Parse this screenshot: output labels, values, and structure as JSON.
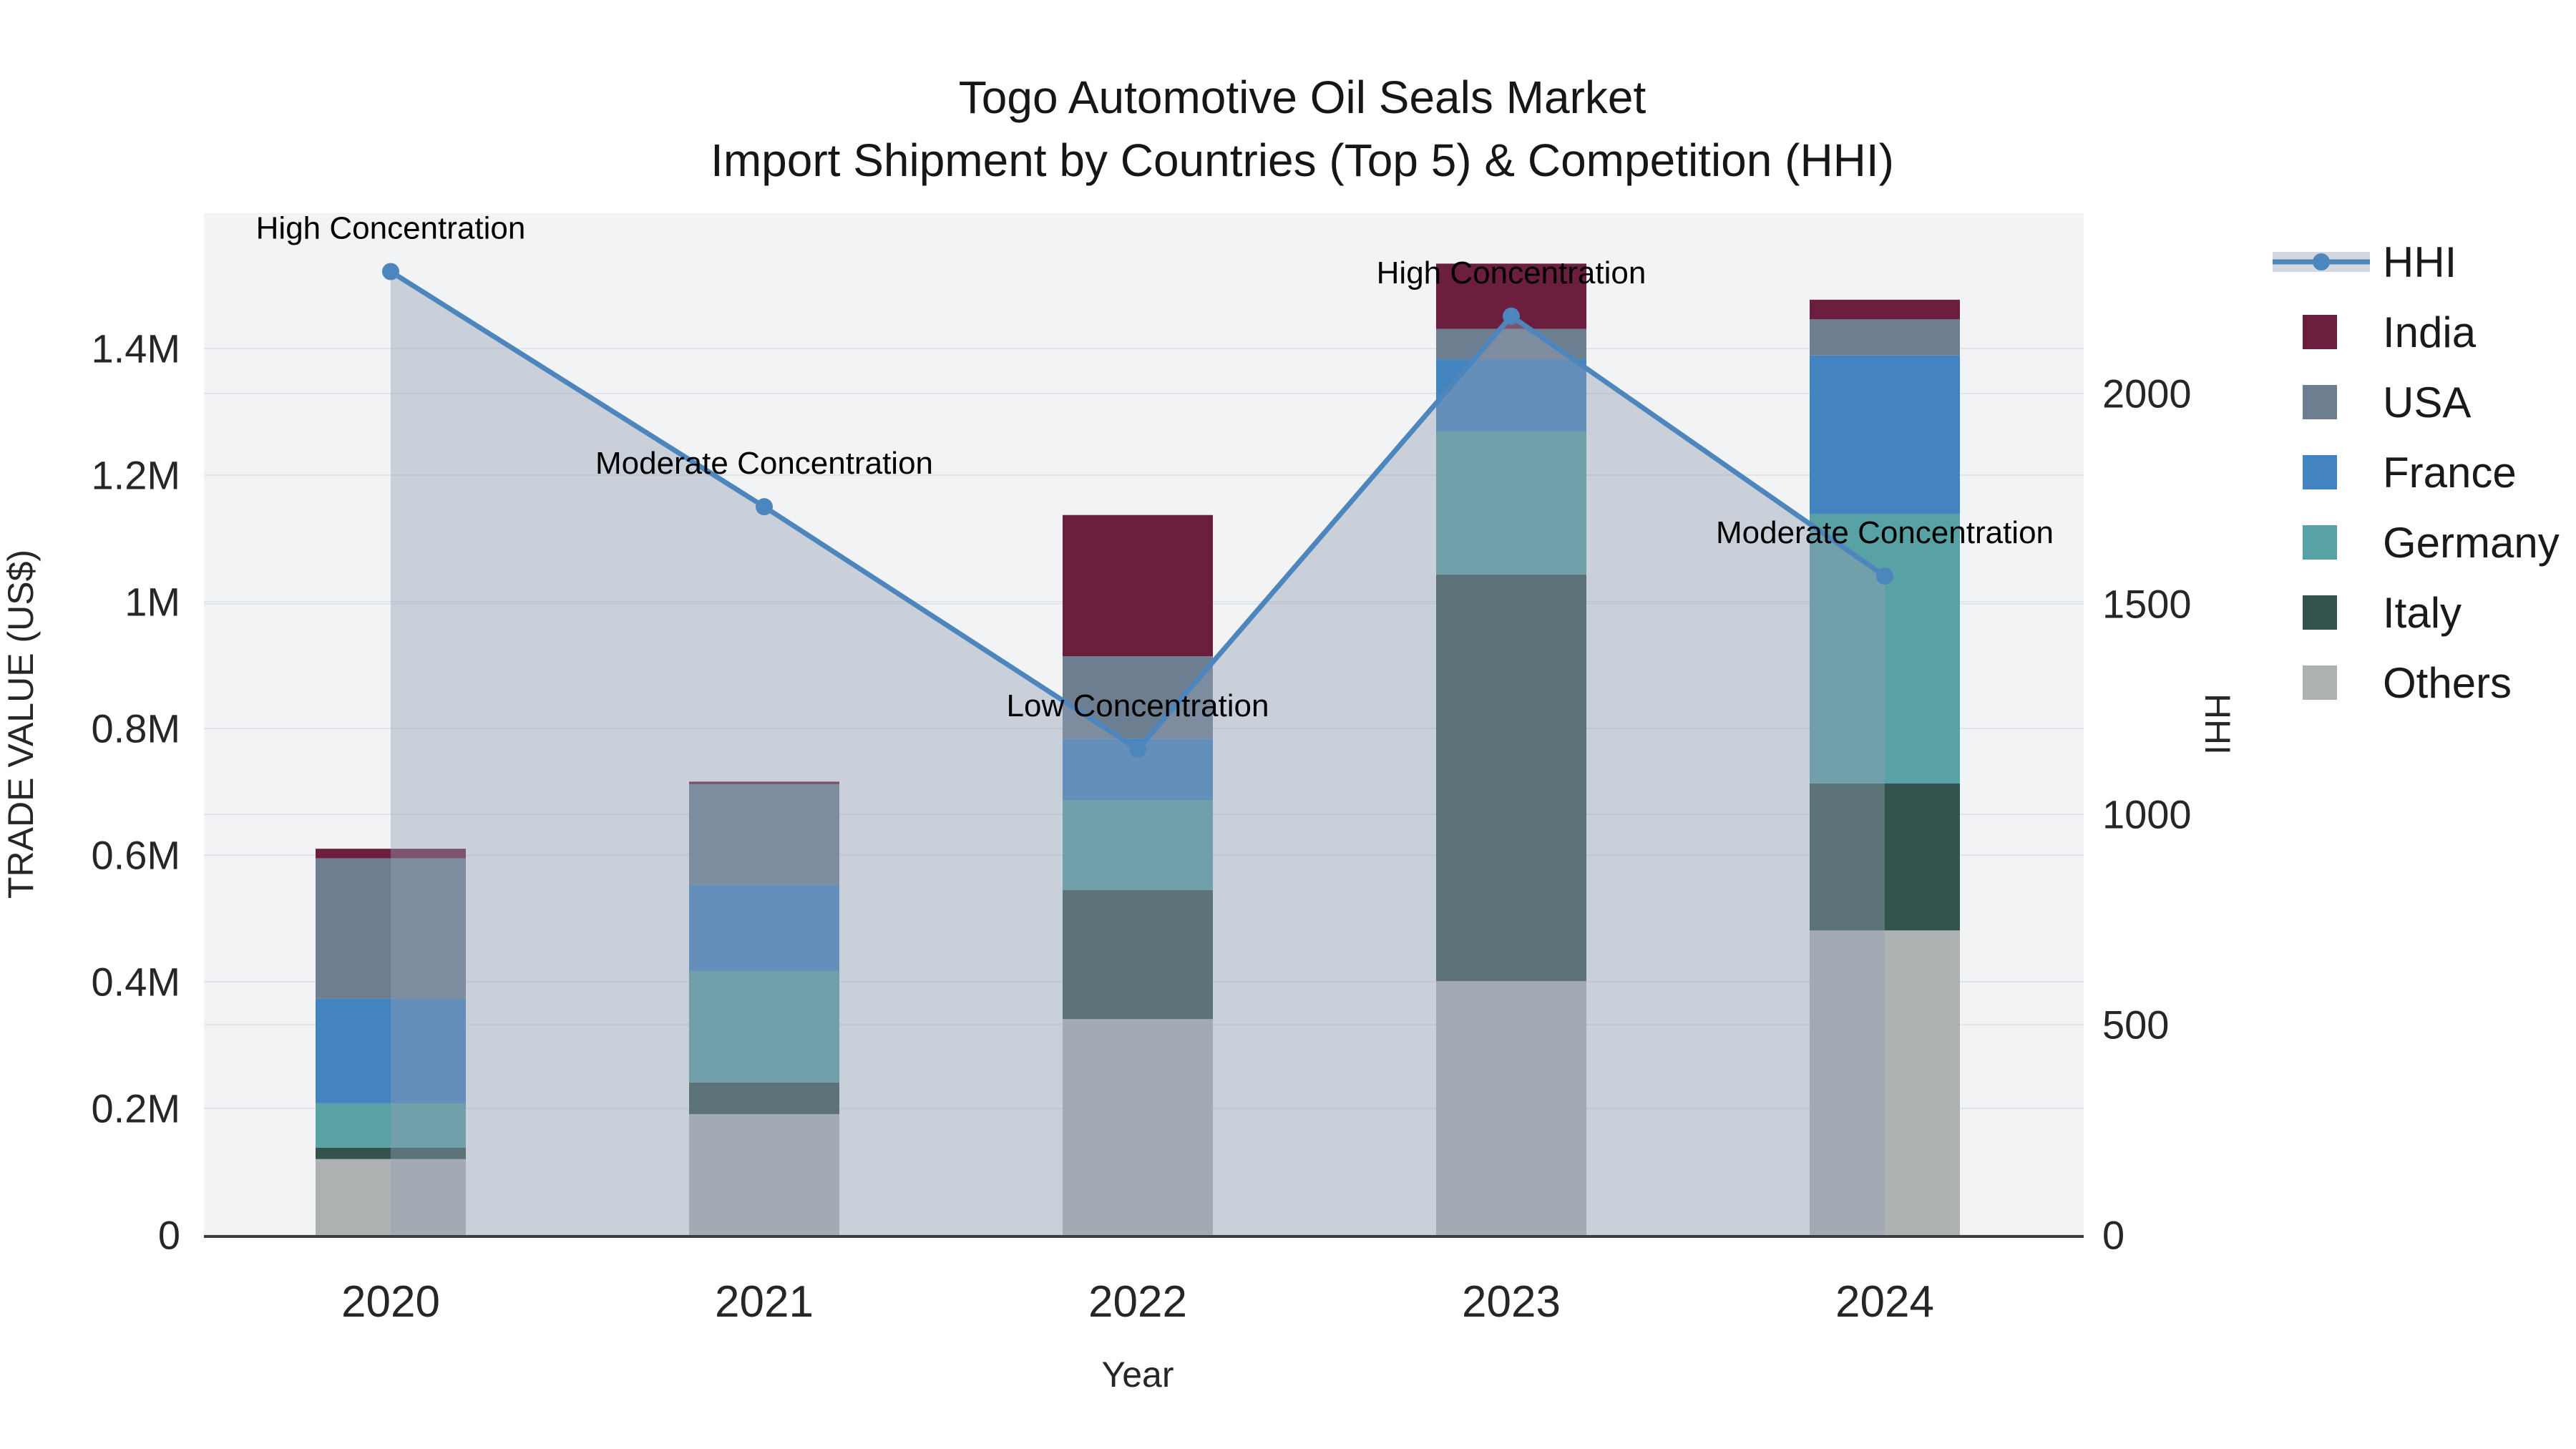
{
  "chart_data": {
    "type": "bar+line",
    "title": "Togo Automotive Oil Seals Market",
    "subtitle": "Import Shipment by Countries (Top 5) & Competition (HHI)",
    "xlabel": "Year",
    "ylabel_left": "TRADE VALUE (US$)",
    "ylabel_right": "HHI",
    "categories": [
      "2020",
      "2021",
      "2022",
      "2023",
      "2024"
    ],
    "values_unit": "millions US$",
    "series": [
      {
        "name": "Others",
        "color": "#aeb1b2",
        "values": [
          0.12,
          0.191,
          0.341,
          0.401,
          0.481
        ]
      },
      {
        "name": "Italy",
        "color": "#33534e",
        "values": [
          0.018,
          0.05,
          0.204,
          0.642,
          0.232
        ]
      },
      {
        "name": "Germany",
        "color": "#58a1a4",
        "values": [
          0.07,
          0.176,
          0.142,
          0.226,
          0.426
        ]
      },
      {
        "name": "France",
        "color": "#4283c0",
        "values": [
          0.165,
          0.136,
          0.097,
          0.114,
          0.25
        ]
      },
      {
        "name": "USA",
        "color": "#6d7e90",
        "values": [
          0.222,
          0.159,
          0.13,
          0.048,
          0.057
        ]
      },
      {
        "name": "India",
        "color": "#6b1e3d",
        "values": [
          0.015,
          0.004,
          0.223,
          0.103,
          0.031
        ]
      }
    ],
    "bar_totals": [
      0.61,
      0.716,
      1.137,
      1.534,
      1.477
    ],
    "hhi": {
      "name": "HHI",
      "line_color": "#4d86bd",
      "area_fill": "rgba(148,159,180,0.42)",
      "values": [
        2290,
        1731,
        1155,
        2184,
        1566
      ]
    },
    "annotations": [
      {
        "category": "2020",
        "text": "High Concentration"
      },
      {
        "category": "2021",
        "text": "Moderate Concentration"
      },
      {
        "category": "2022",
        "text": "Low Concentration"
      },
      {
        "category": "2023",
        "text": "High Concentration"
      },
      {
        "category": "2024",
        "text": "Moderate Concentration"
      }
    ],
    "y_left": {
      "ticks": [
        0,
        0.2,
        0.4,
        0.6,
        0.8,
        1.0,
        1.2,
        1.4
      ],
      "labels": [
        "0",
        "0.2M",
        "0.4M",
        "0.6M",
        "0.8M",
        "1M",
        "1.2M",
        "1.4M"
      ],
      "range": [
        0,
        1.615
      ]
    },
    "y_right": {
      "ticks": [
        0,
        500,
        1000,
        1500,
        2000
      ],
      "labels": [
        "0",
        "500",
        "1000",
        "1500",
        "2000"
      ],
      "range": [
        0,
        2430
      ]
    },
    "legend_order": [
      "HHI",
      "India",
      "USA",
      "France",
      "Germany",
      "Italy",
      "Others"
    ],
    "legend_position": "right",
    "grid": true,
    "colors": {
      "plot_bg": "#f2f3f4",
      "grid": "#e1e4e8",
      "axis_line": "#3d3d3d",
      "tick_text": "#262626",
      "title_text": "#161616",
      "annotation_text": "#000000",
      "legend_band": "#d3d8e0",
      "legend_text": "#1a1a1a"
    }
  }
}
